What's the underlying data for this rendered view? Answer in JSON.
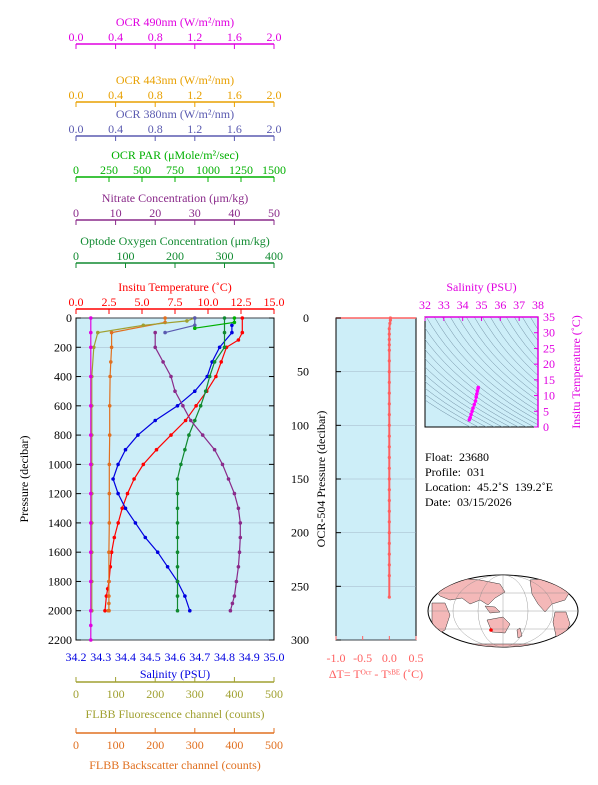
{
  "chart_data": [
    {
      "type": "line",
      "description_panel": "main profile",
      "yaxis": {
        "label": "Pressure (decibar)",
        "ticks": [
          0,
          200,
          400,
          600,
          800,
          1000,
          1200,
          1400,
          1600,
          1800,
          2000,
          2200
        ],
        "range": [
          0,
          2200
        ]
      },
      "top_axes": [
        {
          "name": "ocr490",
          "label": "OCR 490nm (W/m²/nm)",
          "color": "#e000e0",
          "ticks": [
            "0.0",
            "0.4",
            "0.8",
            "1.2",
            "1.6",
            "2.0"
          ],
          "range": [
            0,
            2
          ]
        },
        {
          "name": "ocr443",
          "label": "OCR 443nm (W/m²/nm)",
          "color": "#e8a000",
          "ticks": [
            "0.0",
            "0.4",
            "0.8",
            "1.2",
            "1.6",
            "2.0"
          ],
          "range": [
            0,
            2
          ]
        },
        {
          "name": "ocr380",
          "label": "OCR 380nm (W/m²/nm)",
          "color": "#5a5ab0",
          "ticks": [
            "0.0",
            "0.4",
            "0.8",
            "1.2",
            "1.6",
            "2.0"
          ],
          "range": [
            0,
            2
          ]
        },
        {
          "name": "par",
          "label": "OCR PAR (μMole/m²/sec)",
          "color": "#00b000",
          "ticks": [
            "0",
            "250",
            "500",
            "750",
            "1000",
            "1250",
            "1500"
          ],
          "range": [
            0,
            1500
          ]
        },
        {
          "name": "nitrate",
          "label": "Nitrate Concentration (μm/kg)",
          "color": "#8a2a8a",
          "ticks": [
            "0",
            "10",
            "20",
            "30",
            "40",
            "50"
          ],
          "range": [
            0,
            50
          ]
        },
        {
          "name": "oxygen",
          "label": "Optode Oxygen Concentration (μm/kg)",
          "color": "#108a30",
          "ticks": [
            "0",
            "100",
            "200",
            "300",
            "400"
          ],
          "range": [
            0,
            400
          ]
        },
        {
          "name": "temp",
          "label": "Insitu Temperature (˚C)",
          "color": "#ff0000",
          "ticks": [
            "0.0",
            "2.5",
            "5.0",
            "7.5",
            "10.0",
            "12.5",
            "15.0"
          ],
          "range": [
            0,
            15
          ]
        }
      ],
      "bottom_axes": [
        {
          "name": "salinity",
          "label": "Salinity (PSU)",
          "color": "#0000e0",
          "ticks": [
            "34.2",
            "34.3",
            "34.4",
            "34.5",
            "34.6",
            "34.7",
            "34.8",
            "34.9",
            "35.0"
          ],
          "range": [
            34.2,
            35.0
          ]
        },
        {
          "name": "fluor",
          "label": "FLBB Fluorescence channel (counts)",
          "color": "#a0a030",
          "ticks": [
            "0",
            "100",
            "200",
            "300",
            "400",
            "500"
          ],
          "range": [
            0,
            500
          ]
        },
        {
          "name": "backscatter",
          "label": "FLBB Backscatter channel (counts)",
          "color": "#e07020",
          "ticks": [
            "0",
            "100",
            "200",
            "300",
            "400",
            "500"
          ],
          "range": [
            0,
            500
          ]
        }
      ],
      "series": [
        {
          "axis": "temp",
          "color": "#ff0000",
          "x": [
            12.6,
            12.6,
            12.3,
            11.4,
            11.0,
            10.6,
            9.9,
            9.1,
            8.3,
            7.2,
            6.1,
            5.1,
            4.4,
            3.9,
            3.5,
            3.2,
            2.9,
            2.7,
            2.6,
            2.5,
            2.4,
            2.3,
            2.2
          ],
          "y": [
            0,
            100,
            150,
            200,
            300,
            400,
            500,
            600,
            700,
            800,
            900,
            1000,
            1100,
            1200,
            1300,
            1400,
            1500,
            1600,
            1700,
            1800,
            1850,
            1900,
            2000
          ]
        },
        {
          "axis": "salinity",
          "color": "#0000e0",
          "x": [
            34.83,
            34.83,
            34.78,
            34.75,
            34.73,
            34.68,
            34.61,
            34.52,
            34.45,
            34.4,
            34.37,
            34.35,
            34.37,
            34.4,
            34.44,
            34.48,
            34.53,
            34.57,
            34.61,
            34.64,
            34.66
          ],
          "y": [
            50,
            100,
            200,
            300,
            400,
            500,
            600,
            700,
            800,
            900,
            1000,
            1100,
            1200,
            1300,
            1400,
            1500,
            1600,
            1700,
            1800,
            1900,
            2000
          ]
        },
        {
          "axis": "oxygen",
          "color": "#108a30",
          "x": [
            300,
            300,
            300,
            280,
            270,
            262,
            252,
            240,
            228,
            220,
            212,
            205,
            205,
            205,
            205,
            205,
            205,
            205,
            205,
            205,
            205
          ],
          "y": [
            0,
            100,
            200,
            300,
            400,
            500,
            600,
            700,
            800,
            900,
            1000,
            1100,
            1200,
            1300,
            1400,
            1500,
            1600,
            1700,
            1800,
            1900,
            2000
          ]
        },
        {
          "axis": "nitrate",
          "color": "#8a2a8a",
          "x": [
            20,
            20,
            22,
            24,
            25,
            27,
            29,
            32,
            35,
            37,
            38.5,
            40,
            41,
            41.5,
            41.5,
            41.3,
            41,
            40.5,
            40,
            39.5,
            39
          ],
          "y": [
            100,
            200,
            300,
            400,
            500,
            600,
            700,
            800,
            900,
            1000,
            1100,
            1200,
            1300,
            1400,
            1500,
            1600,
            1700,
            1800,
            1900,
            1950,
            2000
          ]
        },
        {
          "axis": "backscatter",
          "color": "#e07020",
          "x": [
            225,
            225,
            90,
            90,
            88,
            86,
            85,
            85,
            84,
            84,
            84,
            83,
            83,
            83,
            83,
            83,
            83,
            83,
            82,
            82
          ],
          "y": [
            0,
            30,
            100,
            200,
            300,
            400,
            600,
            800,
            1000,
            1200,
            1400,
            1600,
            1800,
            1900,
            1950,
            2000,
            2000,
            2000,
            2000,
            2000
          ]
        },
        {
          "axis": "fluor",
          "color": "#a0a030",
          "x": [
            300,
            280,
            170,
            55,
            45,
            40,
            40,
            40,
            40,
            40,
            40,
            40,
            40,
            40
          ],
          "y": [
            0,
            20,
            50,
            100,
            200,
            400,
            600,
            800,
            1000,
            1200,
            1400,
            1600,
            1800,
            2000
          ]
        },
        {
          "axis": "ocr490",
          "color": "#e000e0",
          "x": [
            0.15,
            0.15,
            0.15,
            0.15,
            0.15,
            0.15,
            0.15,
            0.15,
            0.15,
            0.15,
            0.15,
            0.15,
            0.15,
            0.15
          ],
          "y": [
            0,
            100,
            200,
            400,
            600,
            800,
            1000,
            1200,
            1400,
            1600,
            1800,
            2000,
            2100,
            2200
          ]
        },
        {
          "axis": "ocr380",
          "color": "#5a5ab0",
          "x": [
            1.2,
            1.2,
            0.9
          ],
          "y": [
            0,
            50,
            100
          ]
        },
        {
          "axis": "par",
          "color": "#00b000",
          "x": [
            1200,
            1200,
            900
          ],
          "y": [
            0,
            30,
            70
          ]
        }
      ]
    },
    {
      "type": "line",
      "description_panel": "OCR-504 delta temperature",
      "ylabel": "OCR-504 Pressure (decibar)",
      "xlabel": "ΔT= Tᴼᶜʳ - Tˢᴮᴱ (˚C)",
      "xticks": [
        "-1.0",
        "-0.5",
        "0.0",
        "0.5"
      ],
      "yticks": [
        "0",
        "50",
        "100",
        "150",
        "200",
        "250",
        "300"
      ],
      "xlim": [
        -1.0,
        0.5
      ],
      "ylim": [
        0,
        300
      ],
      "series": [
        {
          "color": "#ff6060",
          "x": [
            0.02,
            0.02,
            0.01,
            0.0,
            0.0,
            0.0,
            0.0,
            0.0,
            0.0,
            0.0,
            0.0,
            0.0,
            0.0,
            0.0,
            0.0,
            0.0,
            0.0,
            0.0,
            0.0,
            0.0,
            0.0,
            0.0,
            0.0,
            0.0,
            0.0,
            0.0,
            0.0,
            0.0,
            0.0,
            0.0
          ],
          "y": [
            0,
            2,
            5,
            10,
            15,
            20,
            25,
            30,
            40,
            50,
            60,
            70,
            80,
            90,
            100,
            110,
            120,
            130,
            140,
            150,
            160,
            170,
            180,
            190,
            200,
            210,
            220,
            230,
            240,
            260
          ]
        }
      ]
    },
    {
      "type": "scatter",
      "description_panel": "T-S diagram",
      "xlabel": "Salinity (PSU)",
      "ylabel": "Insitu Temperature (˚C)",
      "xticks": [
        "32",
        "33",
        "34",
        "35",
        "36",
        "37",
        "38"
      ],
      "yticks": [
        "0",
        "5",
        "10",
        "15",
        "20",
        "25",
        "30",
        "35"
      ],
      "xlim": [
        32,
        38
      ],
      "ylim": [
        0,
        35
      ],
      "color": "#ff00ff",
      "points": [
        {
          "x": 34.35,
          "y": 2.3
        },
        {
          "x": 34.4,
          "y": 3.0
        },
        {
          "x": 34.45,
          "y": 4.0
        },
        {
          "x": 34.5,
          "y": 5.0
        },
        {
          "x": 34.55,
          "y": 6.0
        },
        {
          "x": 34.62,
          "y": 7.2
        },
        {
          "x": 34.68,
          "y": 8.3
        },
        {
          "x": 34.72,
          "y": 9.5
        },
        {
          "x": 34.75,
          "y": 10.5
        },
        {
          "x": 34.78,
          "y": 11.5
        },
        {
          "x": 34.82,
          "y": 12.3
        },
        {
          "x": 34.83,
          "y": 12.6
        }
      ]
    }
  ],
  "info": {
    "float_label": "Float:",
    "float_value": "23680",
    "profile_label": "Profile:",
    "profile_value": "031",
    "location_label": "Location:",
    "location_value": "45.2˚S  139.2˚E",
    "date_label": "Date:",
    "date_value": "03/15/2026"
  },
  "colors": {
    "panel_bg": "#cdeef8",
    "ts_bg": "#cdeef8",
    "land": "#f4b8b8",
    "ocean": "#ffffff"
  }
}
